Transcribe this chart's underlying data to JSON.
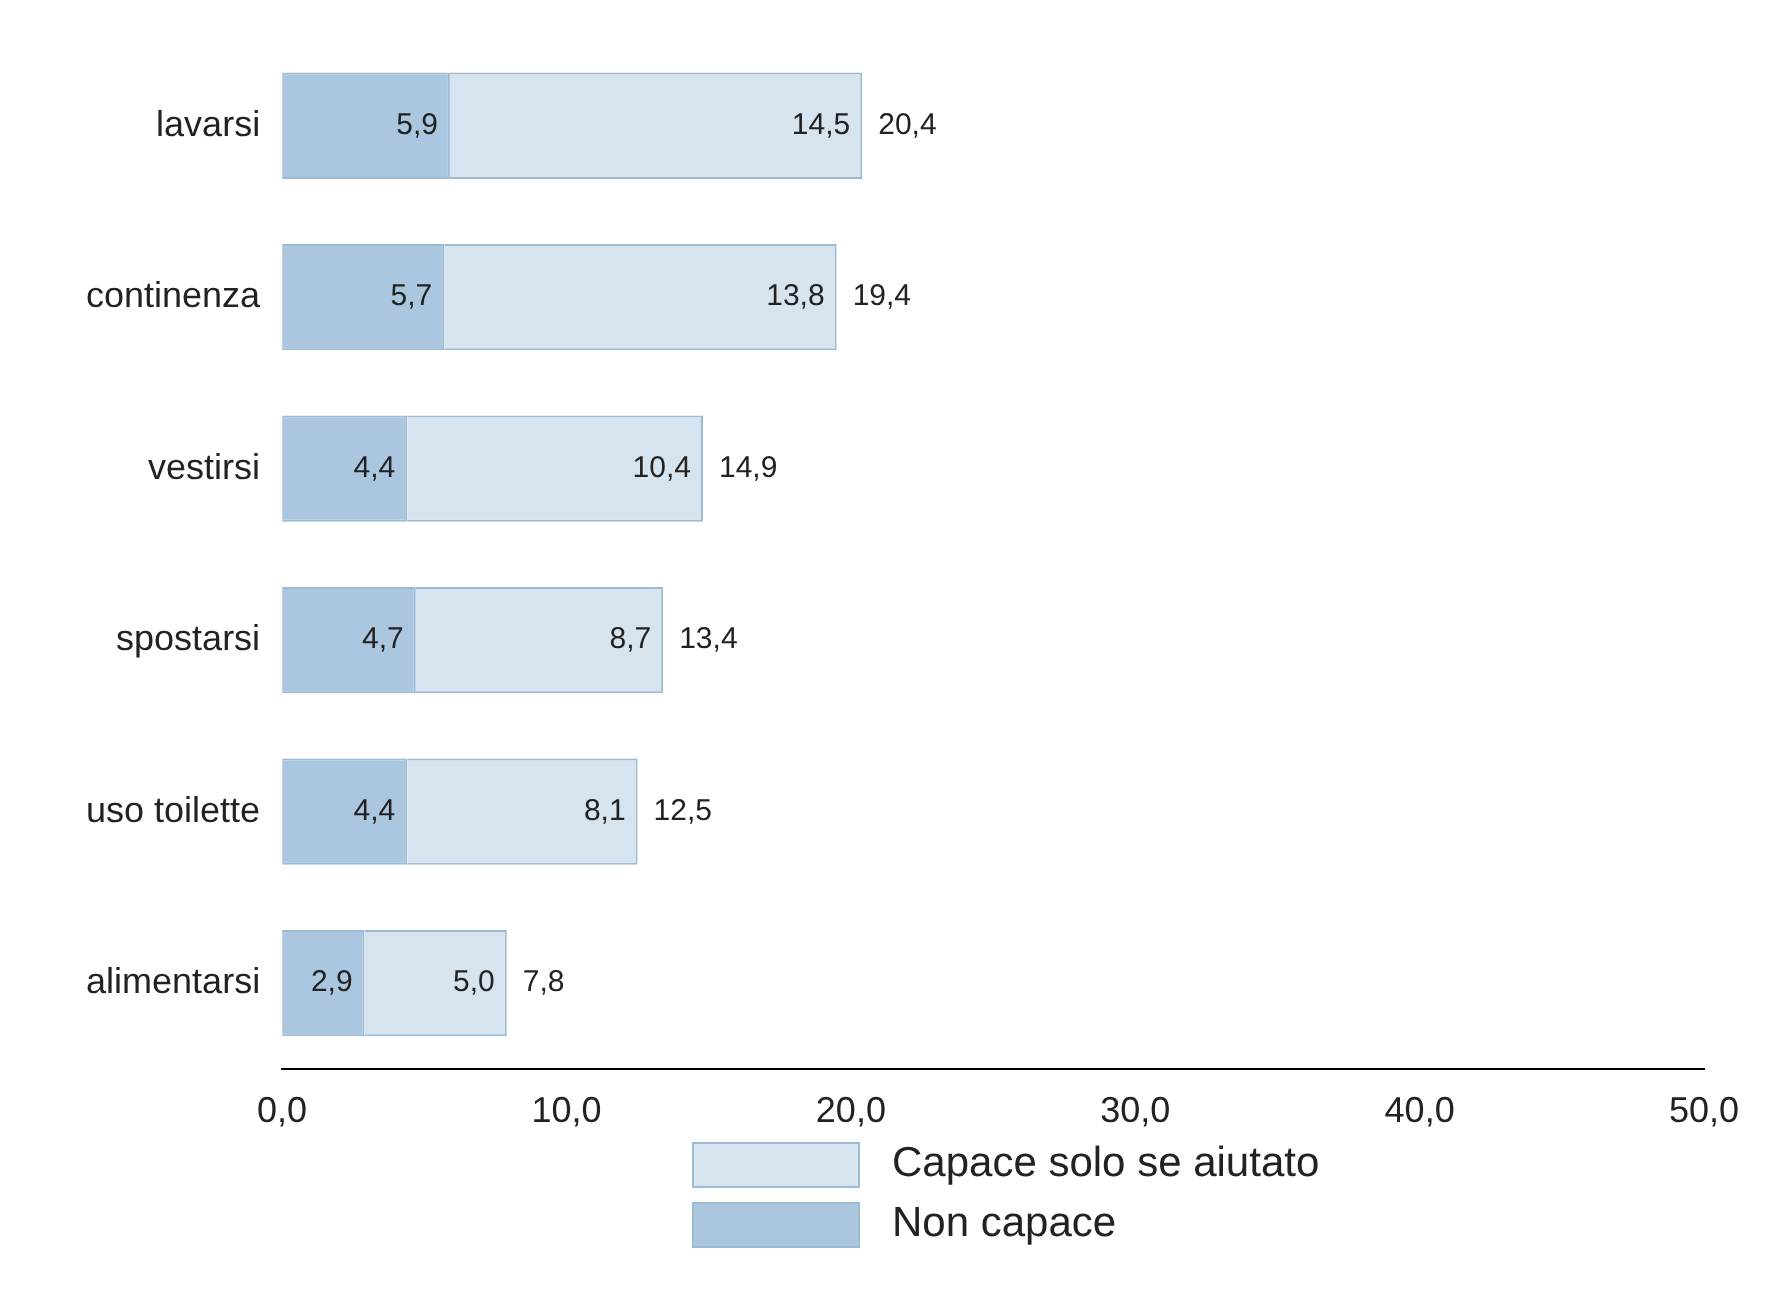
{
  "chart_data": {
    "type": "bar",
    "orientation": "horizontal",
    "stacked": true,
    "categories": [
      "lavarsi",
      "continenza",
      "vestirsi",
      "spostarsi",
      "uso toilette",
      "alimentarsi"
    ],
    "series": [
      {
        "name": "Non capace",
        "color": "#abc7df",
        "values": [
          5.9,
          5.7,
          4.4,
          4.7,
          4.4,
          2.9
        ],
        "value_labels": [
          "5,9",
          "5,7",
          "4,4",
          "4,7",
          "4,4",
          "2,9"
        ]
      },
      {
        "name": "Capace solo se aiutato",
        "color": "#d6e4f0",
        "values": [
          14.5,
          13.8,
          10.4,
          8.7,
          8.1,
          5.0
        ],
        "value_labels": [
          "14,5",
          "13,8",
          "10,4",
          "8,7",
          "8,1",
          "5,0"
        ]
      }
    ],
    "totals": [
      "20,4",
      "19,4",
      "14,9",
      "13,4",
      "12,5",
      "7,8"
    ],
    "xlim": [
      0,
      50
    ],
    "xticks": [
      {
        "value": 0,
        "label": "0,0"
      },
      {
        "value": 10,
        "label": "10,0"
      },
      {
        "value": 20,
        "label": "20,0"
      },
      {
        "value": 30,
        "label": "30,0"
      },
      {
        "value": 40,
        "label": "40,0"
      },
      {
        "value": 50,
        "label": "50,0"
      }
    ],
    "grid": false,
    "legend": "bottom"
  }
}
